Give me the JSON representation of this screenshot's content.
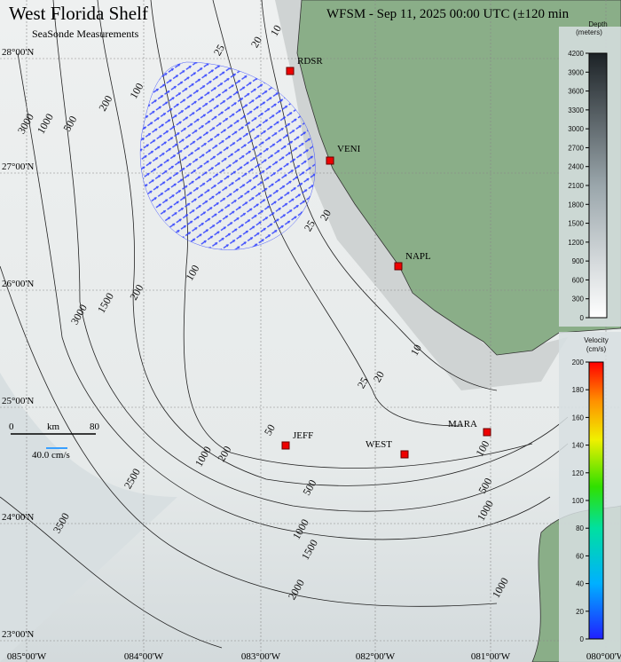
{
  "header": {
    "title": "West Florida Shelf",
    "subtitle": "SeaSonde Measurements",
    "timestamp": "WFSM - Sep 11, 2025 00:00 UTC (±120 min"
  },
  "grid": {
    "latitudes": [
      "28°00'N",
      "27°00'N",
      "26°00'N",
      "25°00'N",
      "24°00'N",
      "23°00'N"
    ],
    "longitudes": [
      "085°00'W",
      "084°00'W",
      "083°00'W",
      "082°00'W",
      "081°00'W",
      "080°00'W"
    ]
  },
  "stations": [
    "RDSR",
    "VENI",
    "NAPL",
    "JEFF",
    "WEST",
    "MARA"
  ],
  "contour_labels": [
    "10",
    "20",
    "25",
    "100",
    "200",
    "500",
    "1000",
    "3000",
    "20",
    "25",
    "100",
    "200",
    "1500",
    "3000",
    "10",
    "20",
    "25",
    "50",
    "200",
    "1000",
    "500",
    "500",
    "100",
    "1000",
    "1000",
    "1500",
    "2000",
    "1000",
    "3500",
    "2500"
  ],
  "scale_bar": {
    "start": "0",
    "unit": "km",
    "end": "80",
    "vector": "40.0 cm/s"
  },
  "depth_colorbar": {
    "title": "Depth",
    "unit": "(meters)",
    "ticks": [
      0,
      300,
      600,
      900,
      1200,
      1500,
      1800,
      2100,
      2400,
      2700,
      3000,
      3300,
      3600,
      3900,
      4200
    ]
  },
  "velocity_colorbar": {
    "title": "Velocity",
    "unit": "(cm/s)",
    "ticks": [
      0,
      20,
      40,
      60,
      80,
      100,
      120,
      140,
      160,
      180,
      200
    ]
  }
}
